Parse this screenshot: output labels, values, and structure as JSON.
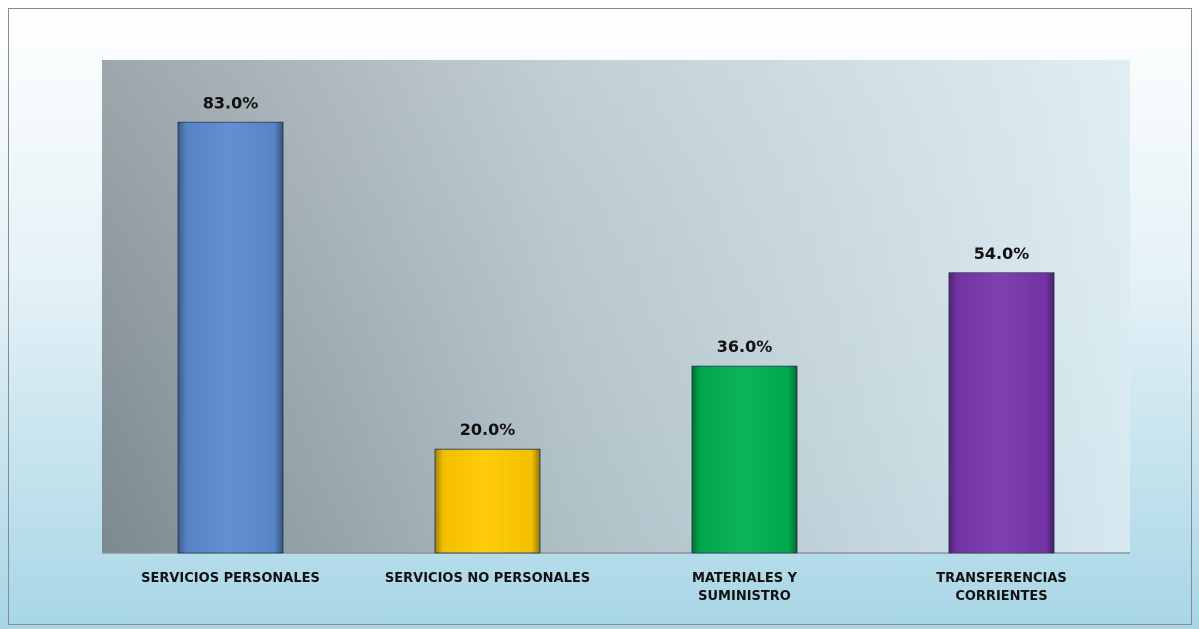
{
  "chart_data": {
    "type": "bar",
    "categories": [
      "SERVICIOS PERSONALES",
      "SERVICIOS NO PERSONALES",
      "MATERIALES Y\nSUMINISTRO",
      "TRANSFERENCIAS\nCORRIENTES"
    ],
    "values": [
      83,
      20,
      36,
      54
    ],
    "value_labels": [
      "83.0%",
      "20.0%",
      "36.0%",
      "54.0%"
    ],
    "colors": [
      "#5a8ad0",
      "#ffc800",
      "#00b050",
      "#7a35ad"
    ],
    "ylim": [
      0,
      95
    ]
  }
}
